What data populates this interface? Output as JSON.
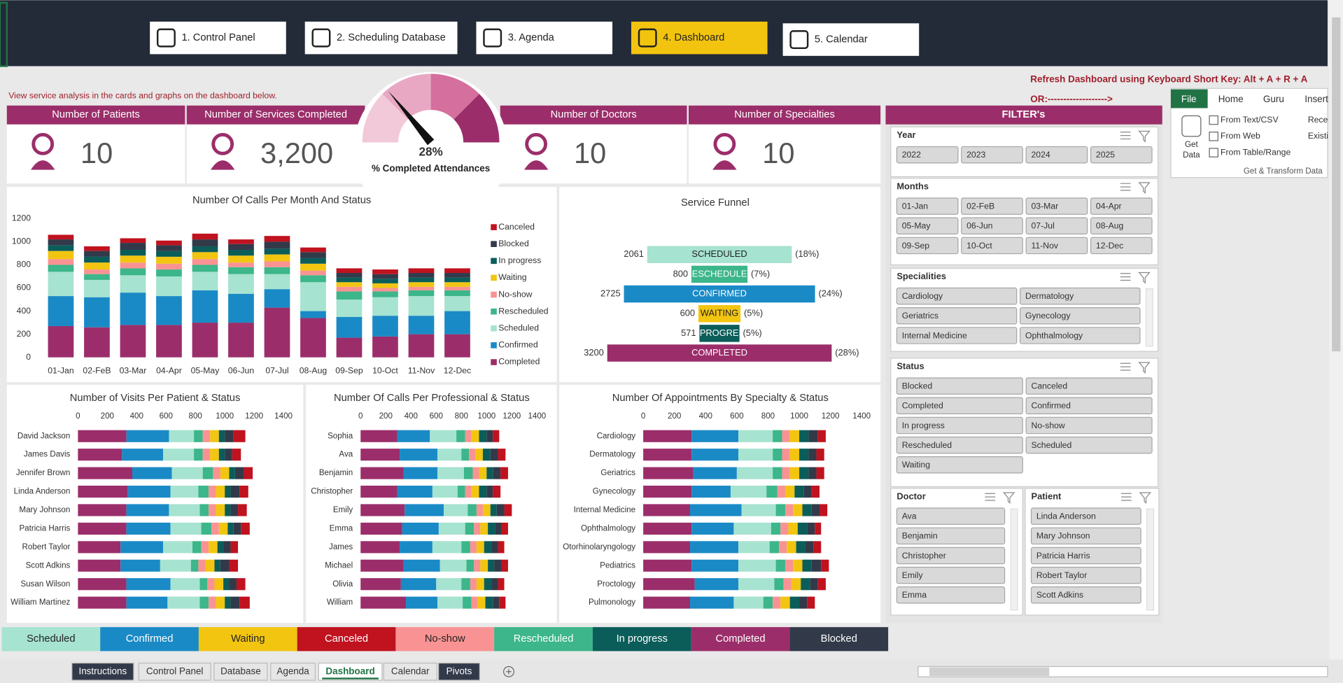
{
  "nav": [
    "1. Control Panel",
    "2. Scheduling Database",
    "3. Agenda",
    "4. Dashboard",
    "5. Calendar"
  ],
  "intro": "View service analysis in the cards and graphs on the dashboard below.",
  "refresh_note": "Refresh Dashboard using Keyboard Short Key: Alt + A + R + A",
  "or_note": "OR:------------------->",
  "kpis": [
    {
      "label": "Number of  Patients",
      "value": 10
    },
    {
      "label": "Number of Services Completed",
      "value": 3200,
      "value_label": "3,200"
    },
    {
      "label": "Number of Doctors",
      "value": 10
    },
    {
      "label": "Number of Specialties",
      "value": 10
    }
  ],
  "gauge": {
    "value": 28,
    "value_label": "28%",
    "label": "% Completed Attendances"
  },
  "chart_data": [
    {
      "type": "stacked_bar",
      "title": "Number Of Calls Per Month And Status",
      "categories": [
        "01-Jan",
        "02-FeB",
        "03-Mar",
        "04-Apr",
        "05-May",
        "06-Jun",
        "07-Jul",
        "08-Aug",
        "09-Sep",
        "10-Oct",
        "11-Nov",
        "12-Dec"
      ],
      "ylim": [
        0,
        1200
      ],
      "yticks": [
        0,
        200,
        400,
        600,
        800,
        1000,
        1200
      ],
      "series": [
        {
          "name": "Completed",
          "color": "#9b2e6a",
          "values": [
            270,
            260,
            280,
            280,
            300,
            300,
            430,
            340,
            170,
            180,
            200,
            200
          ]
        },
        {
          "name": "Confirmed",
          "color": "#1a8ac6",
          "values": [
            260,
            260,
            280,
            250,
            280,
            250,
            160,
            60,
            180,
            180,
            160,
            200
          ]
        },
        {
          "name": "Scheduled",
          "color": "#a6e3d0",
          "values": [
            210,
            150,
            150,
            170,
            160,
            170,
            130,
            250,
            150,
            160,
            170,
            130
          ]
        },
        {
          "name": "Rescheduled",
          "color": "#3cb68a",
          "values": [
            60,
            50,
            60,
            60,
            60,
            60,
            60,
            60,
            70,
            50,
            50,
            50
          ]
        },
        {
          "name": "No-show",
          "color": "#f99393",
          "values": [
            50,
            40,
            50,
            50,
            50,
            40,
            50,
            40,
            40,
            30,
            30,
            30
          ]
        },
        {
          "name": "Waiting",
          "color": "#f2c511",
          "values": [
            70,
            60,
            60,
            60,
            60,
            60,
            60,
            60,
            40,
            40,
            40,
            40
          ]
        },
        {
          "name": "In progress",
          "color": "#0b5d5a",
          "values": [
            50,
            50,
            50,
            50,
            50,
            50,
            50,
            50,
            40,
            40,
            40,
            40
          ]
        },
        {
          "name": "Blocked",
          "color": "#323a4a",
          "values": [
            50,
            50,
            60,
            50,
            60,
            50,
            60,
            50,
            40,
            40,
            40,
            40
          ]
        },
        {
          "name": "Canceled",
          "color": "#c0121f",
          "values": [
            40,
            40,
            40,
            40,
            50,
            40,
            50,
            40,
            40,
            40,
            40,
            40
          ]
        }
      ]
    },
    {
      "type": "funnel",
      "title": "Service Funnel",
      "categories": [
        "SCHEDULED",
        "RESCHEDULED",
        "CONFIRMED",
        "WAITING",
        "IN PROGRESS",
        "COMPLETED"
      ],
      "values": [
        2061,
        800,
        2725,
        600,
        571,
        3200
      ],
      "percent_labels": [
        "(18%)",
        "(7%)",
        "(24%)",
        "(5%)",
        "(5%)",
        "(28%)"
      ],
      "colors": [
        "#a6e3d0",
        "#3cb68a",
        "#1a8ac6",
        "#f2c511",
        "#0b5d5a",
        "#9b2e6a"
      ]
    },
    {
      "type": "stacked_barh",
      "title": "Number of Visits Per Patient & Status",
      "categories": [
        "David Jackson",
        "James Davis",
        "Jennifer Brown",
        "Linda Anderson",
        "Mary Johnson",
        "Patricia Harris",
        "Robert Taylor",
        "Scott Adkins",
        "Susan Wilson",
        "William Martinez"
      ],
      "xlim": [
        0,
        1400
      ],
      "xticks": [
        0,
        200,
        400,
        600,
        800,
        1000,
        1200,
        1400
      ],
      "series": [
        {
          "name": "Completed",
          "color": "#9b2e6a",
          "values": [
            330,
            300,
            370,
            340,
            330,
            330,
            290,
            290,
            330,
            330
          ]
        },
        {
          "name": "Confirmed",
          "color": "#1a8ac6",
          "values": [
            290,
            280,
            270,
            290,
            290,
            300,
            290,
            270,
            300,
            280
          ]
        },
        {
          "name": "Scheduled",
          "color": "#a6e3d0",
          "values": [
            170,
            210,
            210,
            190,
            210,
            210,
            200,
            210,
            200,
            220
          ]
        },
        {
          "name": "Rescheduled",
          "color": "#3cb68a",
          "values": [
            60,
            60,
            70,
            70,
            60,
            70,
            60,
            50,
            50,
            60
          ]
        },
        {
          "name": "No-show",
          "color": "#f99393",
          "values": [
            50,
            50,
            50,
            50,
            50,
            50,
            50,
            50,
            50,
            50
          ]
        },
        {
          "name": "Waiting",
          "color": "#f2c511",
          "values": [
            60,
            60,
            60,
            60,
            60,
            60,
            60,
            60,
            60,
            60
          ]
        },
        {
          "name": "In progress",
          "color": "#0b5d5a",
          "values": [
            40,
            40,
            40,
            40,
            40,
            40,
            40,
            40,
            40,
            40
          ]
        },
        {
          "name": "Blocked",
          "color": "#323a4a",
          "values": [
            60,
            50,
            60,
            60,
            50,
            50,
            50,
            60,
            50,
            60
          ]
        },
        {
          "name": "Canceled",
          "color": "#c0121f",
          "values": [
            80,
            60,
            60,
            60,
            60,
            60,
            50,
            60,
            60,
            70
          ]
        }
      ]
    },
    {
      "type": "stacked_barh",
      "title": "Number Of Calls Per Professional & Status",
      "categories": [
        "Sophia",
        "Ava",
        "Benjamin",
        "Christopher",
        "Emily",
        "Emma",
        "James",
        "Michael",
        "Olivia",
        "William"
      ],
      "xlim": [
        0,
        1400
      ],
      "xticks": [
        0,
        200,
        400,
        600,
        800,
        1000,
        1200,
        1400
      ],
      "series": [
        {
          "name": "Completed",
          "color": "#9b2e6a",
          "values": [
            290,
            310,
            340,
            290,
            350,
            330,
            310,
            340,
            320,
            360
          ]
        },
        {
          "name": "Confirmed",
          "color": "#1a8ac6",
          "values": [
            260,
            300,
            270,
            280,
            310,
            290,
            260,
            290,
            280,
            250
          ]
        },
        {
          "name": "Scheduled",
          "color": "#a6e3d0",
          "values": [
            210,
            190,
            210,
            200,
            190,
            210,
            230,
            210,
            200,
            200
          ]
        },
        {
          "name": "Rescheduled",
          "color": "#3cb68a",
          "values": [
            70,
            60,
            70,
            60,
            70,
            70,
            70,
            60,
            70,
            70
          ]
        },
        {
          "name": "No-show",
          "color": "#f99393",
          "values": [
            50,
            50,
            50,
            50,
            50,
            50,
            50,
            50,
            50,
            50
          ]
        },
        {
          "name": "Waiting",
          "color": "#f2c511",
          "values": [
            60,
            60,
            60,
            60,
            60,
            60,
            60,
            60,
            60,
            60
          ]
        },
        {
          "name": "In progress",
          "color": "#0b5d5a",
          "values": [
            60,
            60,
            50,
            60,
            50,
            60,
            60,
            50,
            60,
            60
          ]
        },
        {
          "name": "Blocked",
          "color": "#323a4a",
          "values": [
            50,
            60,
            60,
            50,
            60,
            50,
            50,
            60,
            50,
            50
          ]
        },
        {
          "name": "Canceled",
          "color": "#c0121f",
          "values": [
            50,
            60,
            60,
            60,
            60,
            50,
            50,
            50,
            50,
            50
          ]
        }
      ]
    },
    {
      "type": "stacked_barh",
      "title": "Number Of Appointments By Specialty & Status",
      "categories": [
        "Cardiology",
        "Dermatology",
        "Geriatrics",
        "Gynecology",
        "Internal Medicine",
        "Ophthalmology",
        "Otorhinolaryngology",
        "Pediatrics",
        "Proctology",
        "Pulmonology"
      ],
      "xlim": [
        0,
        1400
      ],
      "xticks": [
        0,
        200,
        400,
        600,
        800,
        1000,
        1200,
        1400
      ],
      "series": [
        {
          "name": "Completed",
          "color": "#9b2e6a",
          "values": [
            310,
            310,
            320,
            310,
            300,
            310,
            300,
            310,
            330,
            300
          ]
        },
        {
          "name": "Confirmed",
          "color": "#1a8ac6",
          "values": [
            300,
            300,
            280,
            250,
            330,
            270,
            310,
            300,
            280,
            280
          ]
        },
        {
          "name": "Scheduled",
          "color": "#a6e3d0",
          "values": [
            220,
            220,
            230,
            230,
            220,
            240,
            200,
            240,
            230,
            190
          ]
        },
        {
          "name": "Rescheduled",
          "color": "#3cb68a",
          "values": [
            60,
            60,
            60,
            70,
            60,
            60,
            60,
            60,
            60,
            60
          ]
        },
        {
          "name": "No-show",
          "color": "#f99393",
          "values": [
            50,
            50,
            50,
            50,
            50,
            50,
            50,
            50,
            50,
            50
          ]
        },
        {
          "name": "Waiting",
          "color": "#f2c511",
          "values": [
            60,
            60,
            60,
            60,
            60,
            60,
            60,
            60,
            60,
            60
          ]
        },
        {
          "name": "In progress",
          "color": "#0b5d5a",
          "values": [
            60,
            60,
            60,
            60,
            60,
            60,
            60,
            60,
            60,
            60
          ]
        },
        {
          "name": "Blocked",
          "color": "#323a4a",
          "values": [
            60,
            50,
            50,
            50,
            50,
            50,
            50,
            60,
            50,
            50
          ]
        },
        {
          "name": "Canceled",
          "color": "#c0121f",
          "values": [
            50,
            50,
            50,
            50,
            50,
            40,
            50,
            50,
            50,
            50
          ]
        }
      ]
    }
  ],
  "filters": {
    "title": "FILTER's",
    "slicers": [
      {
        "title": "Year",
        "items": [
          "2022",
          "2023",
          "2024",
          "2025"
        ]
      },
      {
        "title": "Months",
        "items": [
          "01-Jan",
          "02-FeB",
          "03-Mar",
          "04-Apr",
          "05-May",
          "06-Jun",
          "07-Jul",
          "08-Aug",
          "09-Sep",
          "10-Oct",
          "11-Nov",
          "12-Dec"
        ]
      },
      {
        "title": "Specialities",
        "items": [
          "Cardiology",
          "Dermatology",
          "Geriatrics",
          "Gynecology",
          "Internal Medicine",
          "Ophthalmology"
        ]
      },
      {
        "title": "Status",
        "items": [
          "Blocked",
          "Canceled",
          "Completed",
          "Confirmed",
          "In progress",
          "No-show",
          "Rescheduled",
          "Scheduled",
          "Waiting"
        ]
      },
      {
        "title": "Doctor",
        "items": [
          "Ava",
          "Benjamin",
          "Christopher",
          "Emily",
          "Emma"
        ]
      },
      {
        "title": "Patient",
        "items": [
          "Linda Anderson",
          "Mary Johnson",
          "Patricia Harris",
          "Robert Taylor",
          "Scott Adkins"
        ]
      }
    ]
  },
  "ribbon": {
    "tabs": [
      "File",
      "Home",
      "Guru",
      "Insert"
    ],
    "get_data": [
      "Get",
      "Data"
    ],
    "items": [
      "From Text/CSV",
      "From Web",
      "From Table/Range"
    ],
    "cut_items": [
      "Rece",
      "Existi"
    ],
    "group": "Get & Transform Data"
  },
  "status_legend": [
    {
      "name": "Scheduled",
      "color": "#a6e3d0"
    },
    {
      "name": "Confirmed",
      "color": "#1a8ac6"
    },
    {
      "name": "Waiting",
      "color": "#f2c511"
    },
    {
      "name": "Canceled",
      "color": "#c0121f"
    },
    {
      "name": "No-show",
      "color": "#f99393"
    },
    {
      "name": "Rescheduled",
      "color": "#3cb68a"
    },
    {
      "name": "In progress",
      "color": "#0b5d5a"
    },
    {
      "name": "Completed",
      "color": "#9b2e6a"
    },
    {
      "name": "Blocked",
      "color": "#323a4a"
    }
  ],
  "sheet_tabs": [
    "Instructions",
    "Control Panel",
    "Database",
    "Agenda",
    "Dashboard",
    "Calendar",
    "Pivots"
  ]
}
